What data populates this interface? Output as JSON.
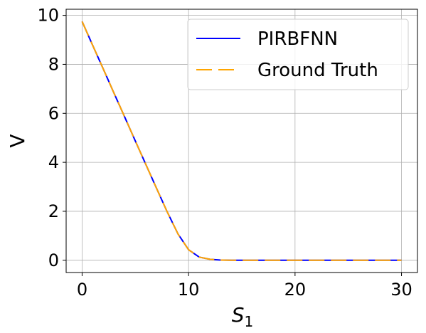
{
  "chart_data": {
    "type": "line",
    "xlabel": "S",
    "xlabel_sub": "1",
    "ylabel": "V",
    "xlim": [
      -1.5,
      31.5
    ],
    "ylim": [
      -0.5,
      10.25
    ],
    "xticks": [
      0,
      10,
      20,
      30
    ],
    "xtick_labels": [
      "0",
      "10",
      "20",
      "30"
    ],
    "yticks": [
      0,
      2,
      4,
      6,
      8,
      10
    ],
    "ytick_labels": [
      "0",
      "2",
      "4",
      "6",
      "8",
      "10"
    ],
    "grid": true,
    "legend_position": "top-right",
    "series": [
      {
        "name": "PIRBFNN",
        "color": "#0000ff",
        "style": "solid",
        "x": [
          0,
          1,
          2,
          3,
          4,
          5,
          6,
          7,
          8,
          9,
          10,
          11,
          12,
          13,
          14,
          15,
          20,
          25,
          30
        ],
        "y": [
          9.75,
          8.77,
          7.8,
          6.82,
          5.85,
          4.87,
          3.9,
          2.93,
          1.97,
          1.08,
          0.43,
          0.13,
          0.04,
          0.01,
          0.0,
          0.0,
          0.0,
          0.0,
          0.0
        ]
      },
      {
        "name": "Ground Truth",
        "color": "#ffa500",
        "style": "dashed",
        "x": [
          0,
          1,
          2,
          3,
          4,
          5,
          6,
          7,
          8,
          9,
          10,
          11,
          12,
          13,
          14,
          15,
          20,
          25,
          30
        ],
        "y": [
          9.75,
          8.77,
          7.8,
          6.82,
          5.85,
          4.87,
          3.9,
          2.93,
          1.97,
          1.08,
          0.43,
          0.13,
          0.04,
          0.01,
          0.0,
          0.0,
          0.0,
          0.0,
          0.0
        ]
      }
    ]
  }
}
